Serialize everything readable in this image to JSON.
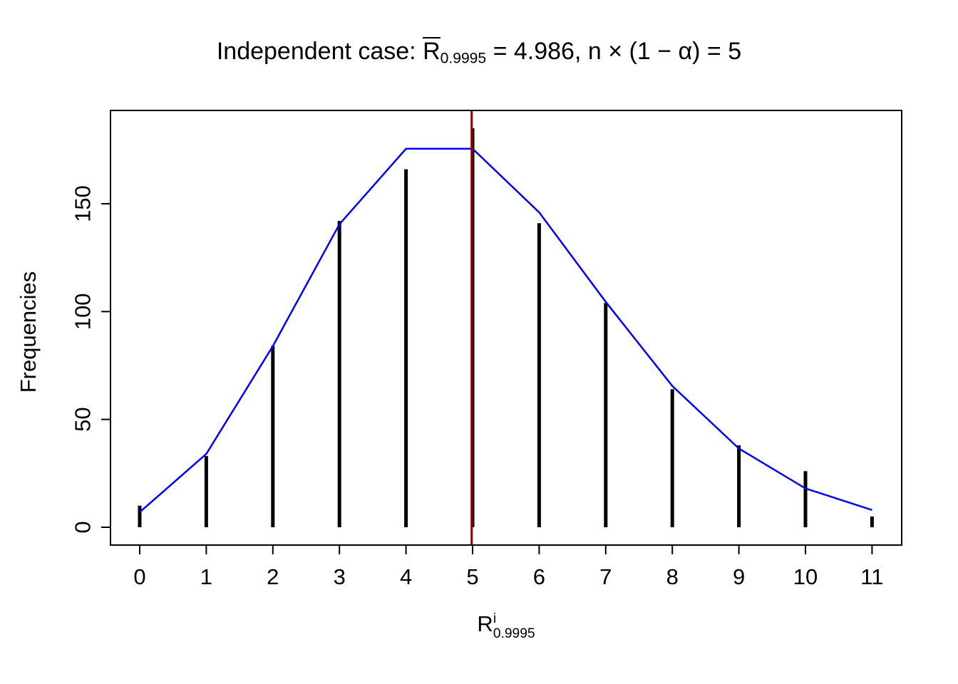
{
  "title": {
    "prefix": "Independent case: ",
    "r_symbol": "R",
    "r_subscript": "0.9995",
    "middle": " = 4.986, n ",
    "times": "×",
    "tail": " (1 − α) = 5"
  },
  "axes": {
    "y_label": "Frequencies",
    "x_label_base": "R",
    "x_label_sup": "i",
    "x_label_sub": "0.9995",
    "x_tick_labels": [
      "0",
      "1",
      "2",
      "3",
      "4",
      "5",
      "6",
      "7",
      "8",
      "9",
      "10",
      "11"
    ],
    "y_tick_labels": [
      "0",
      "50",
      "100",
      "150"
    ]
  },
  "chart_data": {
    "type": "line",
    "title": "Independent case: R̄_0.9995 = 4.986, n × (1 − α) = 5",
    "xlabel": "R^i_0.9995",
    "ylabel": "Frequencies",
    "x": [
      0,
      1,
      2,
      3,
      4,
      5,
      6,
      7,
      8,
      9,
      10,
      11
    ],
    "series": [
      {
        "name": "simulated frequencies (black stems)",
        "style": "stem",
        "color": "#000000",
        "values": [
          10,
          33,
          84,
          142,
          166,
          185,
          141,
          104,
          64,
          38,
          26,
          5
        ]
      },
      {
        "name": "theoretical Poisson(5) frequencies (blue line)",
        "style": "line",
        "color": "#0000ff",
        "values": [
          7,
          34,
          84,
          140.5,
          175.5,
          175.5,
          146,
          104.5,
          65.5,
          36.5,
          18,
          8
        ]
      }
    ],
    "vline": {
      "x": 4.986,
      "color": "#8b0000"
    },
    "xlim": [
      0,
      11
    ],
    "ylim": [
      0,
      193
    ],
    "x_ticks": [
      0,
      1,
      2,
      3,
      4,
      5,
      6,
      7,
      8,
      9,
      10,
      11
    ],
    "y_ticks": [
      0,
      50,
      100,
      150
    ],
    "grid": false,
    "legend": "none"
  },
  "colors": {
    "stem": "#000000",
    "line": "#0000ff",
    "vline": "#8b0000",
    "frame": "#000000"
  }
}
